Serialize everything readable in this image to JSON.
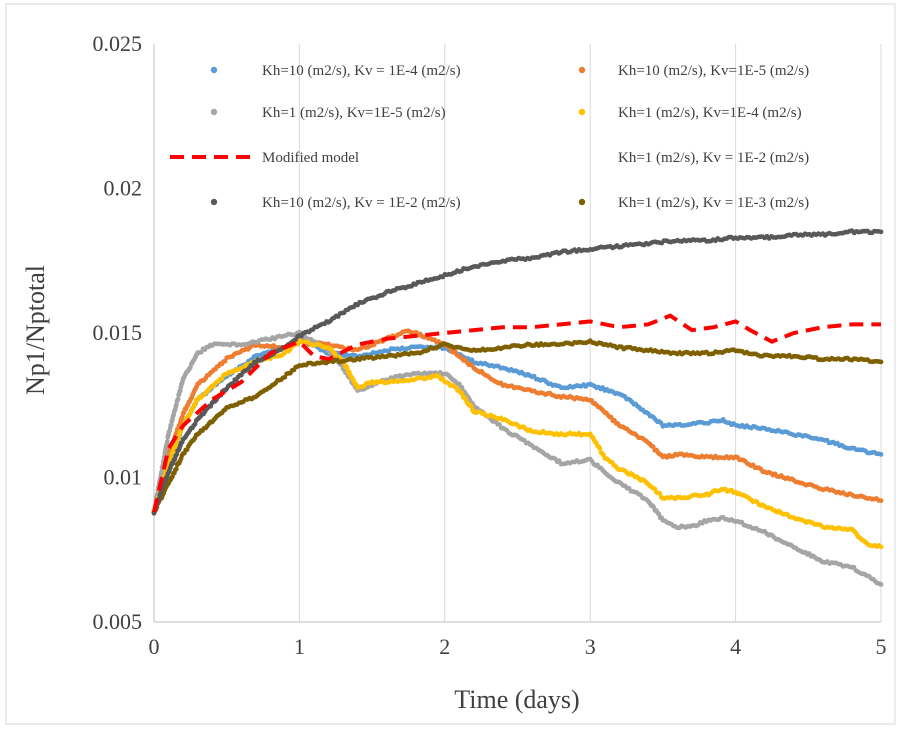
{
  "chart_data": {
    "type": "line",
    "title": "",
    "xlabel": "Time (days)",
    "ylabel": "Np1/Nptotal",
    "xlim": [
      0,
      5
    ],
    "ylim": [
      0.005,
      0.025
    ],
    "x_ticks": [
      0,
      1,
      2,
      3,
      4,
      5
    ],
    "x_tick_labels": [
      "0",
      "1",
      "2",
      "3",
      "4",
      "5"
    ],
    "y_ticks": [
      0.005,
      0.01,
      0.015,
      0.02,
      0.025
    ],
    "y_tick_labels": [
      "0.005",
      "0.01",
      "0.015",
      "0.02",
      "0.025"
    ],
    "grid": "vertical",
    "legend_placement": "top",
    "series": [
      {
        "name": "Kh=10 (m2/s), Kv = 1E-4 (m2/s)",
        "color": "#5B9BD5",
        "style": "dots",
        "x": [
          0,
          0.1,
          0.2,
          0.3,
          0.5,
          0.7,
          0.9,
          1.0,
          1.2,
          1.4,
          1.6,
          1.8,
          2.0,
          2.2,
          2.4,
          2.6,
          2.8,
          3.0,
          3.2,
          3.4,
          3.5,
          3.6,
          3.8,
          3.9,
          4.0,
          4.2,
          4.4,
          4.6,
          4.8,
          5.0
        ],
        "y": [
          0.0088,
          0.0105,
          0.0118,
          0.0127,
          0.0135,
          0.0142,
          0.0145,
          0.0148,
          0.0143,
          0.0142,
          0.0144,
          0.0145,
          0.0145,
          0.014,
          0.0138,
          0.0135,
          0.0131,
          0.0132,
          0.0129,
          0.0122,
          0.0118,
          0.0118,
          0.0119,
          0.012,
          0.0118,
          0.0117,
          0.0115,
          0.0113,
          0.011,
          0.0108
        ]
      },
      {
        "name": "Kh=10 (m2/s), Kv=1E-5 (m2/s)",
        "color": "#ED7D31",
        "style": "dots",
        "x": [
          0,
          0.1,
          0.2,
          0.3,
          0.5,
          0.7,
          0.9,
          1.0,
          1.2,
          1.4,
          1.6,
          1.75,
          1.9,
          2.0,
          2.2,
          2.4,
          2.6,
          2.8,
          3.0,
          3.2,
          3.4,
          3.5,
          3.6,
          3.8,
          4.0,
          4.2,
          4.4,
          4.6,
          4.8,
          5.0
        ],
        "y": [
          0.0088,
          0.0108,
          0.0122,
          0.0132,
          0.0141,
          0.0146,
          0.0145,
          0.0147,
          0.0146,
          0.0144,
          0.0148,
          0.0151,
          0.0148,
          0.0146,
          0.0138,
          0.0132,
          0.013,
          0.0128,
          0.0127,
          0.0118,
          0.0112,
          0.0107,
          0.0108,
          0.0107,
          0.0107,
          0.0102,
          0.0099,
          0.0096,
          0.0094,
          0.0092
        ]
      },
      {
        "name": "Kh=1 (m2/s), Kv=1E-5 (m2/s)",
        "color": "#A5A5A5",
        "style": "dots",
        "x": [
          0,
          0.1,
          0.2,
          0.3,
          0.4,
          0.6,
          0.8,
          1.0,
          1.2,
          1.3,
          1.4,
          1.5,
          1.6,
          1.8,
          2.0,
          2.1,
          2.2,
          2.4,
          2.6,
          2.8,
          3.0,
          3.1,
          3.2,
          3.4,
          3.5,
          3.6,
          3.7,
          3.8,
          3.9,
          4.0,
          4.2,
          4.4,
          4.6,
          4.8,
          5.0
        ],
        "y": [
          0.0088,
          0.0115,
          0.0134,
          0.0143,
          0.0146,
          0.0146,
          0.0148,
          0.015,
          0.0144,
          0.0138,
          0.013,
          0.0132,
          0.0134,
          0.0136,
          0.0136,
          0.0132,
          0.0125,
          0.0117,
          0.0111,
          0.0105,
          0.0106,
          0.0102,
          0.0098,
          0.0092,
          0.0085,
          0.0083,
          0.0083,
          0.0085,
          0.0086,
          0.0085,
          0.0081,
          0.0076,
          0.0071,
          0.0069,
          0.0063
        ]
      },
      {
        "name": "Kh=1 (m2/s), Kv=1E-4 (m2/s)",
        "color": "#FFC000",
        "style": "dots",
        "x": [
          0,
          0.1,
          0.2,
          0.3,
          0.5,
          0.7,
          0.9,
          1.0,
          1.2,
          1.3,
          1.4,
          1.5,
          1.6,
          1.8,
          1.95,
          2.1,
          2.2,
          2.4,
          2.6,
          2.8,
          3.0,
          3.1,
          3.2,
          3.4,
          3.5,
          3.6,
          3.8,
          3.9,
          4.0,
          4.2,
          4.4,
          4.6,
          4.8,
          4.9,
          5.0
        ],
        "y": [
          0.0088,
          0.0105,
          0.0118,
          0.0127,
          0.0136,
          0.014,
          0.0143,
          0.0147,
          0.0145,
          0.014,
          0.0131,
          0.0133,
          0.0133,
          0.0134,
          0.0135,
          0.013,
          0.0123,
          0.012,
          0.0116,
          0.0115,
          0.0115,
          0.0107,
          0.0103,
          0.0098,
          0.0093,
          0.0093,
          0.0094,
          0.0096,
          0.0095,
          0.009,
          0.0086,
          0.0083,
          0.0082,
          0.0077,
          0.0076
        ]
      },
      {
        "name": "Modified model",
        "color": "#FF0000",
        "style": "dash",
        "x": [
          0,
          0.1,
          0.2,
          0.4,
          0.6,
          0.8,
          1.0,
          1.1,
          1.2,
          1.4,
          1.6,
          1.8,
          2.0,
          2.2,
          2.4,
          2.6,
          2.8,
          3.0,
          3.2,
          3.4,
          3.55,
          3.7,
          3.85,
          4.0,
          4.1,
          4.25,
          4.4,
          4.6,
          4.8,
          5.0
        ],
        "y": [
          0.0088,
          0.011,
          0.0118,
          0.0127,
          0.0133,
          0.0143,
          0.0147,
          0.0142,
          0.0141,
          0.0146,
          0.0148,
          0.0149,
          0.015,
          0.0151,
          0.0152,
          0.0152,
          0.0153,
          0.0154,
          0.0152,
          0.0153,
          0.0156,
          0.0151,
          0.0152,
          0.0154,
          0.0151,
          0.0147,
          0.015,
          0.0152,
          0.0153,
          0.0153
        ]
      },
      {
        "name": "Kh=1 (m2/s), Kv = 1E-2 (m2/s)",
        "color": "#4472C4",
        "style": "dots",
        "x": [],
        "y": []
      },
      {
        "name": "Kh=10 (m2/s), Kv = 1E-2 (m2/s)",
        "color": "#595959",
        "style": "dots",
        "x": [
          0,
          0.1,
          0.2,
          0.3,
          0.5,
          0.7,
          0.9,
          1.0,
          1.2,
          1.4,
          1.6,
          1.8,
          2.0,
          2.2,
          2.4,
          2.6,
          2.8,
          3.0,
          3.2,
          3.4,
          3.6,
          3.8,
          4.0,
          4.2,
          4.4,
          4.6,
          4.8,
          5.0
        ],
        "y": [
          0.0088,
          0.0102,
          0.0113,
          0.012,
          0.0131,
          0.014,
          0.0145,
          0.0149,
          0.0154,
          0.016,
          0.0164,
          0.0167,
          0.017,
          0.0173,
          0.0175,
          0.0176,
          0.0178,
          0.0179,
          0.018,
          0.0181,
          0.0182,
          0.0182,
          0.0183,
          0.0183,
          0.0184,
          0.0184,
          0.0185,
          0.0185
        ]
      },
      {
        "name": "Kh=1 (m2/s), Kv = 1E-3 (m2/s)",
        "color": "#7F6000",
        "style": "dots",
        "x": [
          0,
          0.1,
          0.2,
          0.3,
          0.5,
          0.7,
          0.9,
          1.0,
          1.2,
          1.4,
          1.6,
          1.8,
          2.0,
          2.2,
          2.4,
          2.6,
          2.8,
          3.0,
          3.2,
          3.4,
          3.6,
          3.8,
          4.0,
          4.2,
          4.4,
          4.6,
          4.8,
          5.0
        ],
        "y": [
          0.0088,
          0.0098,
          0.0108,
          0.0115,
          0.0124,
          0.0128,
          0.0135,
          0.0139,
          0.014,
          0.0141,
          0.0142,
          0.0143,
          0.0146,
          0.0144,
          0.0145,
          0.0146,
          0.0146,
          0.0147,
          0.0145,
          0.0144,
          0.0143,
          0.0143,
          0.0144,
          0.0142,
          0.0142,
          0.0141,
          0.0141,
          0.014
        ]
      }
    ]
  }
}
